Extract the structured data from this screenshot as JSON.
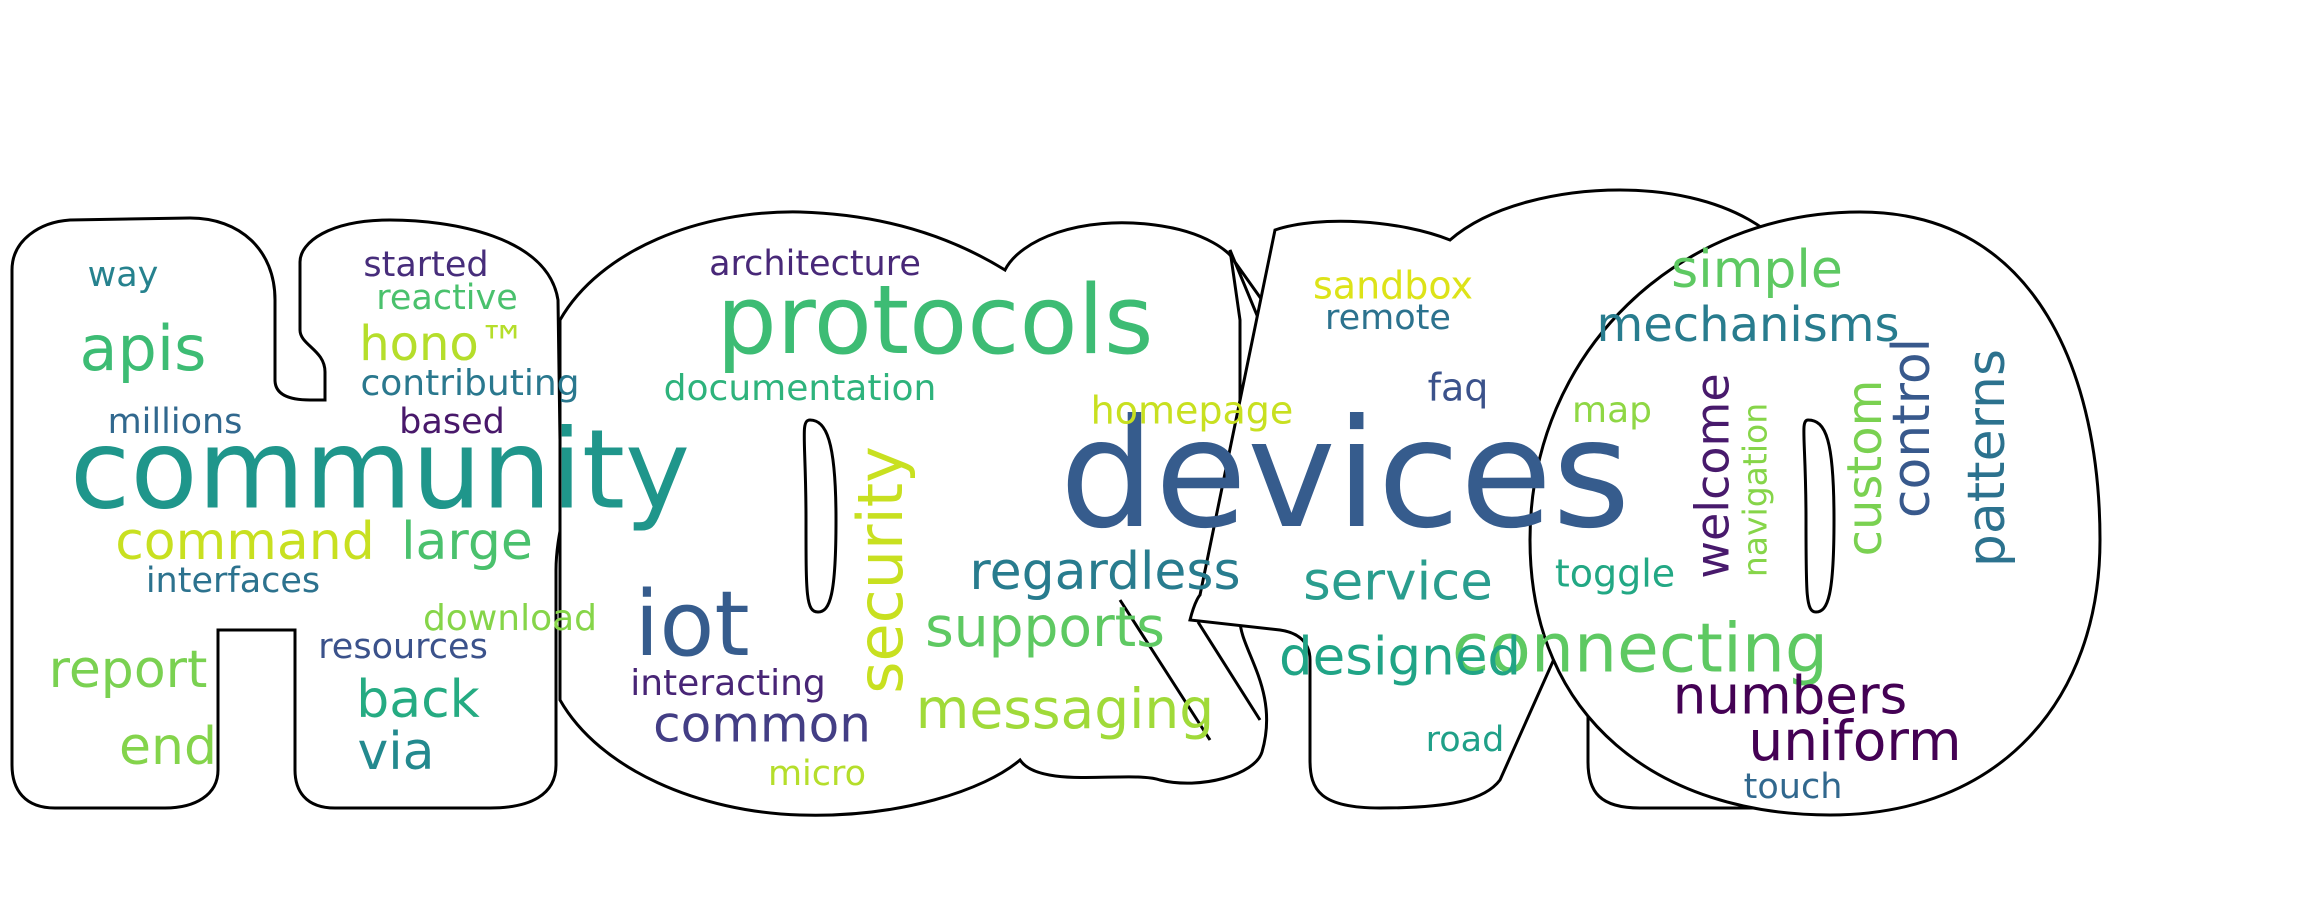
{
  "word_cloud": {
    "words": [
      {
        "text": "devices",
        "color": "#365c8d"
      },
      {
        "text": "community",
        "color": "#1f968b"
      },
      {
        "text": "protocols",
        "color": "#3dbc74"
      },
      {
        "text": "iot",
        "color": "#365c8d"
      },
      {
        "text": "connecting",
        "color": "#5ec962"
      },
      {
        "text": "apis",
        "color": "#3dbc74"
      },
      {
        "text": "security",
        "color": "#c8e020"
      },
      {
        "text": "regardless",
        "color": "#287c8e"
      },
      {
        "text": "messaging",
        "color": "#a0da39"
      },
      {
        "text": "supports",
        "color": "#5ec962"
      },
      {
        "text": "uniform",
        "color": "#440154"
      },
      {
        "text": "numbers",
        "color": "#440154"
      },
      {
        "text": "designed",
        "color": "#20a486"
      },
      {
        "text": "service",
        "color": "#2a9d8e"
      },
      {
        "text": "common",
        "color": "#433e85"
      },
      {
        "text": "mechanisms",
        "color": "#287c8e"
      },
      {
        "text": "simple",
        "color": "#5ec962"
      },
      {
        "text": "command",
        "color": "#c8e020"
      },
      {
        "text": "large",
        "color": "#4ac16d"
      },
      {
        "text": "report",
        "color": "#7ad151"
      },
      {
        "text": "end",
        "color": "#84d44b"
      },
      {
        "text": "back",
        "color": "#25ab82"
      },
      {
        "text": "via",
        "color": "#23898e"
      },
      {
        "text": "hono™",
        "color": "#b5de2b"
      },
      {
        "text": "patterns",
        "color": "#2c728e"
      },
      {
        "text": "control",
        "color": "#38598c"
      },
      {
        "text": "custom",
        "color": "#7ad151"
      },
      {
        "text": "welcome",
        "color": "#481a6c"
      },
      {
        "text": "navigation",
        "color": "#86d549"
      },
      {
        "text": "architecture",
        "color": "#482878"
      },
      {
        "text": "documentation",
        "color": "#2eb37c"
      },
      {
        "text": "contributing",
        "color": "#2a788e"
      },
      {
        "text": "started",
        "color": "#472d7b"
      },
      {
        "text": "reactive",
        "color": "#4ac16d"
      },
      {
        "text": "interfaces",
        "color": "#2c728e"
      },
      {
        "text": "millions",
        "color": "#31688e"
      },
      {
        "text": "based",
        "color": "#48186a"
      },
      {
        "text": "way",
        "color": "#26828e"
      },
      {
        "text": "download",
        "color": "#86d549"
      },
      {
        "text": "resources",
        "color": "#3b528b"
      },
      {
        "text": "interacting",
        "color": "#482576"
      },
      {
        "text": "micro",
        "color": "#b5de2b"
      },
      {
        "text": "homepage",
        "color": "#c8e020"
      },
      {
        "text": "sandbox",
        "color": "#dde318"
      },
      {
        "text": "remote",
        "color": "#2c728e"
      },
      {
        "text": "faq",
        "color": "#3b528b"
      },
      {
        "text": "map",
        "color": "#8fd744"
      },
      {
        "text": "toggle",
        "color": "#22a884"
      },
      {
        "text": "road",
        "color": "#1fa088"
      },
      {
        "text": "touch",
        "color": "#31688e"
      }
    ]
  }
}
